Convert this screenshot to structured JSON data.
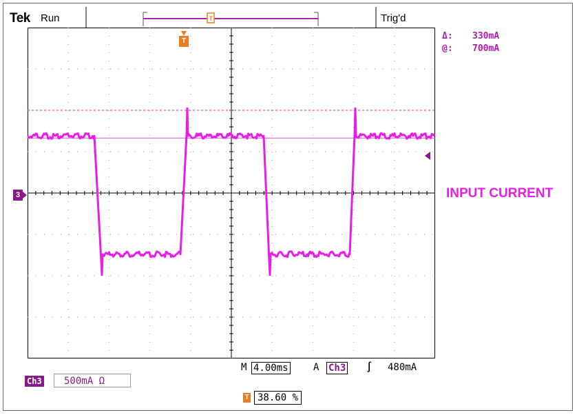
{
  "header": {
    "brand": "Tek",
    "run_state": "Run",
    "trigger_state": "Trig'd"
  },
  "cursor": {
    "delta_symbol": "Δ:",
    "delta_value": "330mA",
    "at_symbol": "@:",
    "at_value": "700mA"
  },
  "signal_label": "INPUT CURRENT",
  "channel_marker": "3",
  "trigger_marker": "T",
  "timebase": {
    "m_prefix": "M",
    "value": "4.00ms",
    "trigger_mode": "A",
    "trigger_source": "Ch3",
    "slope_symbol": "∫",
    "trigger_level": "480mA"
  },
  "channel_scale": {
    "badge": "Ch3",
    "value": "500mA Ω"
  },
  "position": {
    "icon": "T",
    "value": "38.60 %"
  },
  "colors": {
    "trace": "#e81ee8",
    "channel": "#8a1a8a",
    "trigger": "#f07a20"
  },
  "waveform": {
    "high_level": 0.22,
    "low_level": -0.27,
    "reference_line": 0.285,
    "units": "divisions-relative"
  }
}
